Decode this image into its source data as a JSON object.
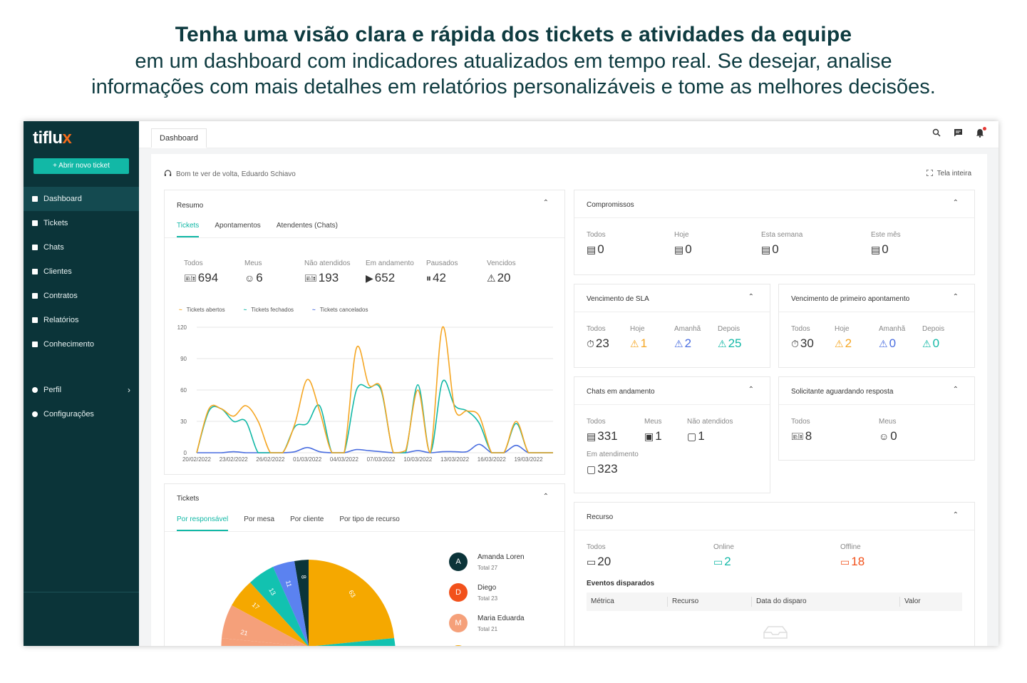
{
  "hero": {
    "title": "Tenha uma visão clara e rápida dos tickets e atividades da equipe",
    "line1": "em um dashboard com indicadores atualizados em tempo real. Se desejar, analise",
    "line2": "informações com mais detalhes em relatórios personalizáveis e tome as melhores decisões."
  },
  "sidebar": {
    "logo_main": "tiflu",
    "logo_x": "x",
    "new_ticket": "+   Abrir novo ticket",
    "items": [
      {
        "label": "Dashboard"
      },
      {
        "label": "Tickets"
      },
      {
        "label": "Chats"
      },
      {
        "label": "Clientes"
      },
      {
        "label": "Contratos"
      },
      {
        "label": "Relatórios"
      },
      {
        "label": "Conhecimento"
      }
    ],
    "items2": [
      {
        "label": "Perfil"
      },
      {
        "label": "Configurações"
      }
    ]
  },
  "topbar": {
    "tab": "Dashboard"
  },
  "welcome": "Bom te ver de volta, Eduardo Schiavo",
  "fullscreen": "Tela inteira",
  "resumo": {
    "title": "Resumo",
    "tabs": [
      "Tickets",
      "Apontamentos",
      "Atendentes (Chats)"
    ],
    "stats": [
      {
        "label": "Todos",
        "value": "694"
      },
      {
        "label": "Meus",
        "value": "6"
      },
      {
        "label": "Não atendidos",
        "value": "193"
      },
      {
        "label": "Em andamento",
        "value": "652"
      },
      {
        "label": "Pausados",
        "value": "42"
      },
      {
        "label": "Vencidos",
        "value": "20"
      }
    ],
    "legend": [
      "Tickets abertos",
      "Tickets fechados",
      "Tickets cancelados"
    ]
  },
  "chart_data": {
    "type": "line",
    "title": "",
    "xlabel": "",
    "ylabel": "",
    "ylim": [
      0,
      120
    ],
    "yticks": [
      0,
      30,
      60,
      90,
      120
    ],
    "x": [
      "20/02/2022",
      "21/02/2022",
      "22/02/2022",
      "23/02/2022",
      "24/02/2022",
      "25/02/2022",
      "26/02/2022",
      "27/02/2022",
      "28/02/2022",
      "01/03/2022",
      "02/03/2022",
      "03/03/2022",
      "04/03/2022",
      "05/03/2022",
      "06/03/2022",
      "07/03/2022",
      "08/03/2022",
      "09/03/2022",
      "10/03/2022",
      "11/03/2022",
      "12/03/2022",
      "13/03/2022",
      "14/03/2022",
      "15/03/2022",
      "16/03/2022",
      "17/03/2022",
      "18/03/2022",
      "19/03/2022",
      "20/03/2022",
      "21/03/2022"
    ],
    "xtick_labels": [
      "20/02/2022",
      "23/02/2022",
      "26/02/2022",
      "01/03/2022",
      "04/03/2022",
      "07/03/2022",
      "10/03/2022",
      "13/03/2022",
      "16/03/2022",
      "19/03/2022"
    ],
    "series": [
      {
        "name": "Tickets abertos",
        "color": "#f5a623",
        "values": [
          0,
          42,
          42,
          35,
          45,
          30,
          0,
          0,
          28,
          70,
          40,
          0,
          0,
          100,
          65,
          62,
          0,
          2,
          60,
          0,
          120,
          42,
          40,
          35,
          0,
          0,
          30,
          0,
          0,
          0
        ]
      },
      {
        "name": "Tickets fechados",
        "color": "#12b8a6",
        "values": [
          0,
          40,
          42,
          30,
          30,
          0,
          0,
          0,
          25,
          28,
          45,
          0,
          0,
          60,
          62,
          60,
          0,
          0,
          65,
          0,
          68,
          45,
          40,
          28,
          0,
          0,
          28,
          0,
          0,
          0
        ]
      },
      {
        "name": "Tickets cancelados",
        "color": "#4a6ee0",
        "values": [
          0,
          0,
          0,
          1,
          0,
          0,
          0,
          0,
          1,
          5,
          1,
          0,
          0,
          3,
          2,
          1,
          0,
          0,
          2,
          0,
          1,
          1,
          1,
          8,
          0,
          0,
          7,
          0,
          0,
          0
        ]
      }
    ]
  },
  "tickets": {
    "title": "Tickets",
    "tabs": [
      "Por responsável",
      "Por mesa",
      "Por cliente",
      "Por tipo de recurso"
    ],
    "pie_labels": [
      "63",
      "8",
      "11",
      "13",
      "17",
      "21"
    ],
    "people": [
      {
        "initial": "A",
        "name": "Amanda Loren",
        "total": "Total 27",
        "color": "#0b3439"
      },
      {
        "initial": "D",
        "name": "Diego",
        "total": "Total 23",
        "color": "#f2511b"
      },
      {
        "initial": "M",
        "name": "Maria Eduarda",
        "total": "Total 21",
        "color": "#f5a07a"
      }
    ]
  },
  "compromissos": {
    "title": "Compromissos",
    "stats": [
      {
        "label": "Todos",
        "value": "0"
      },
      {
        "label": "Hoje",
        "value": "0"
      },
      {
        "label": "Esta semana",
        "value": "0"
      },
      {
        "label": "Este mês",
        "value": "0"
      }
    ]
  },
  "sla": {
    "title": "Vencimento de SLA",
    "stats": [
      {
        "label": "Todos",
        "value": "23"
      },
      {
        "label": "Hoje",
        "value": "1"
      },
      {
        "label": "Amanhã",
        "value": "2"
      },
      {
        "label": "Depois",
        "value": "25"
      }
    ]
  },
  "primeiro": {
    "title": "Vencimento de primeiro apontamento",
    "stats": [
      {
        "label": "Todos",
        "value": "30"
      },
      {
        "label": "Hoje",
        "value": "2"
      },
      {
        "label": "Amanhã",
        "value": "0"
      },
      {
        "label": "Depois",
        "value": "0"
      }
    ]
  },
  "chats": {
    "title": "Chats em andamento",
    "stats": [
      {
        "label": "Todos",
        "value": "331"
      },
      {
        "label": "Meus",
        "value": "1"
      },
      {
        "label": "Não atendidos",
        "value": "1"
      },
      {
        "label": "Em atendimento",
        "value": "323"
      }
    ]
  },
  "solicitante": {
    "title": "Solicitante aguardando resposta",
    "stats": [
      {
        "label": "Todos",
        "value": "8"
      },
      {
        "label": "Meus",
        "value": "0"
      }
    ]
  },
  "recurso": {
    "title": "Recurso",
    "stats": [
      {
        "label": "Todos",
        "value": "20"
      },
      {
        "label": "Online",
        "value": "2"
      },
      {
        "label": "Offline",
        "value": "18"
      }
    ],
    "eventos": "Eventos disparados",
    "columns": [
      "Métrica",
      "Recurso",
      "Data do disparo",
      "Valor"
    ]
  },
  "colors": {
    "teal": "#12b8a6",
    "dark": "#0b3439",
    "orange": "#f5a623",
    "blue": "#4a6ee0",
    "red": "#f2511b"
  }
}
